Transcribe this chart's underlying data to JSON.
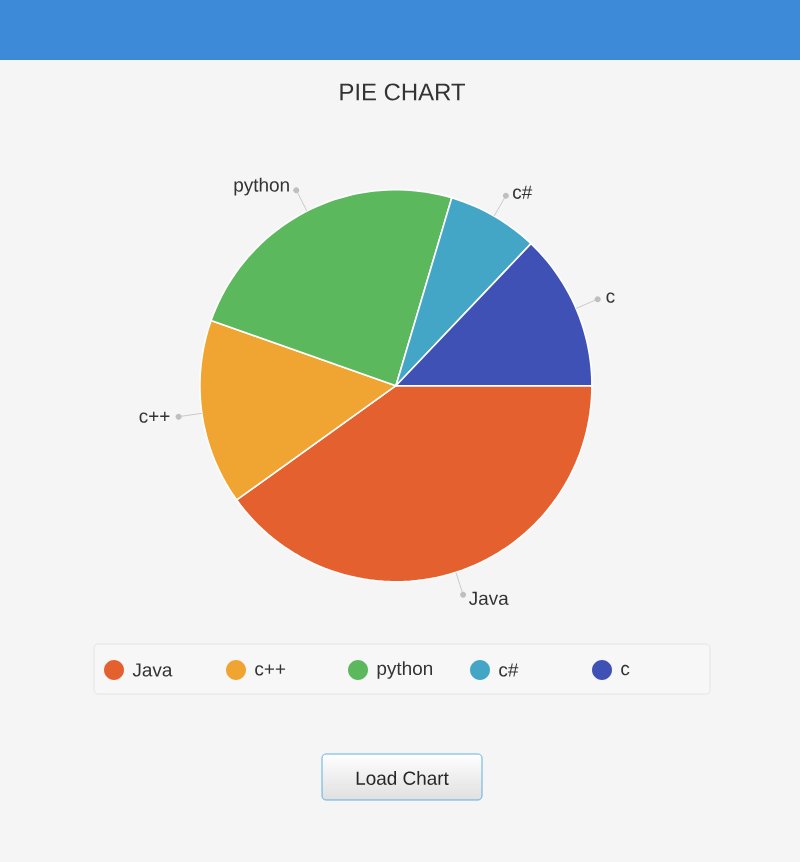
{
  "chart_data": {
    "type": "pie",
    "title": "PIE CHART",
    "categories": [
      "Java",
      "c++",
      "python",
      "c#",
      "c"
    ],
    "values": [
      40.1,
      15.3,
      24.2,
      7.5,
      12.9
    ],
    "colors": [
      "#e5602f",
      "#f0a432",
      "#5cb85c",
      "#44a6c6",
      "#3f51b5"
    ],
    "legend": "bottom",
    "annotations": [
      "Load Chart"
    ]
  }
}
